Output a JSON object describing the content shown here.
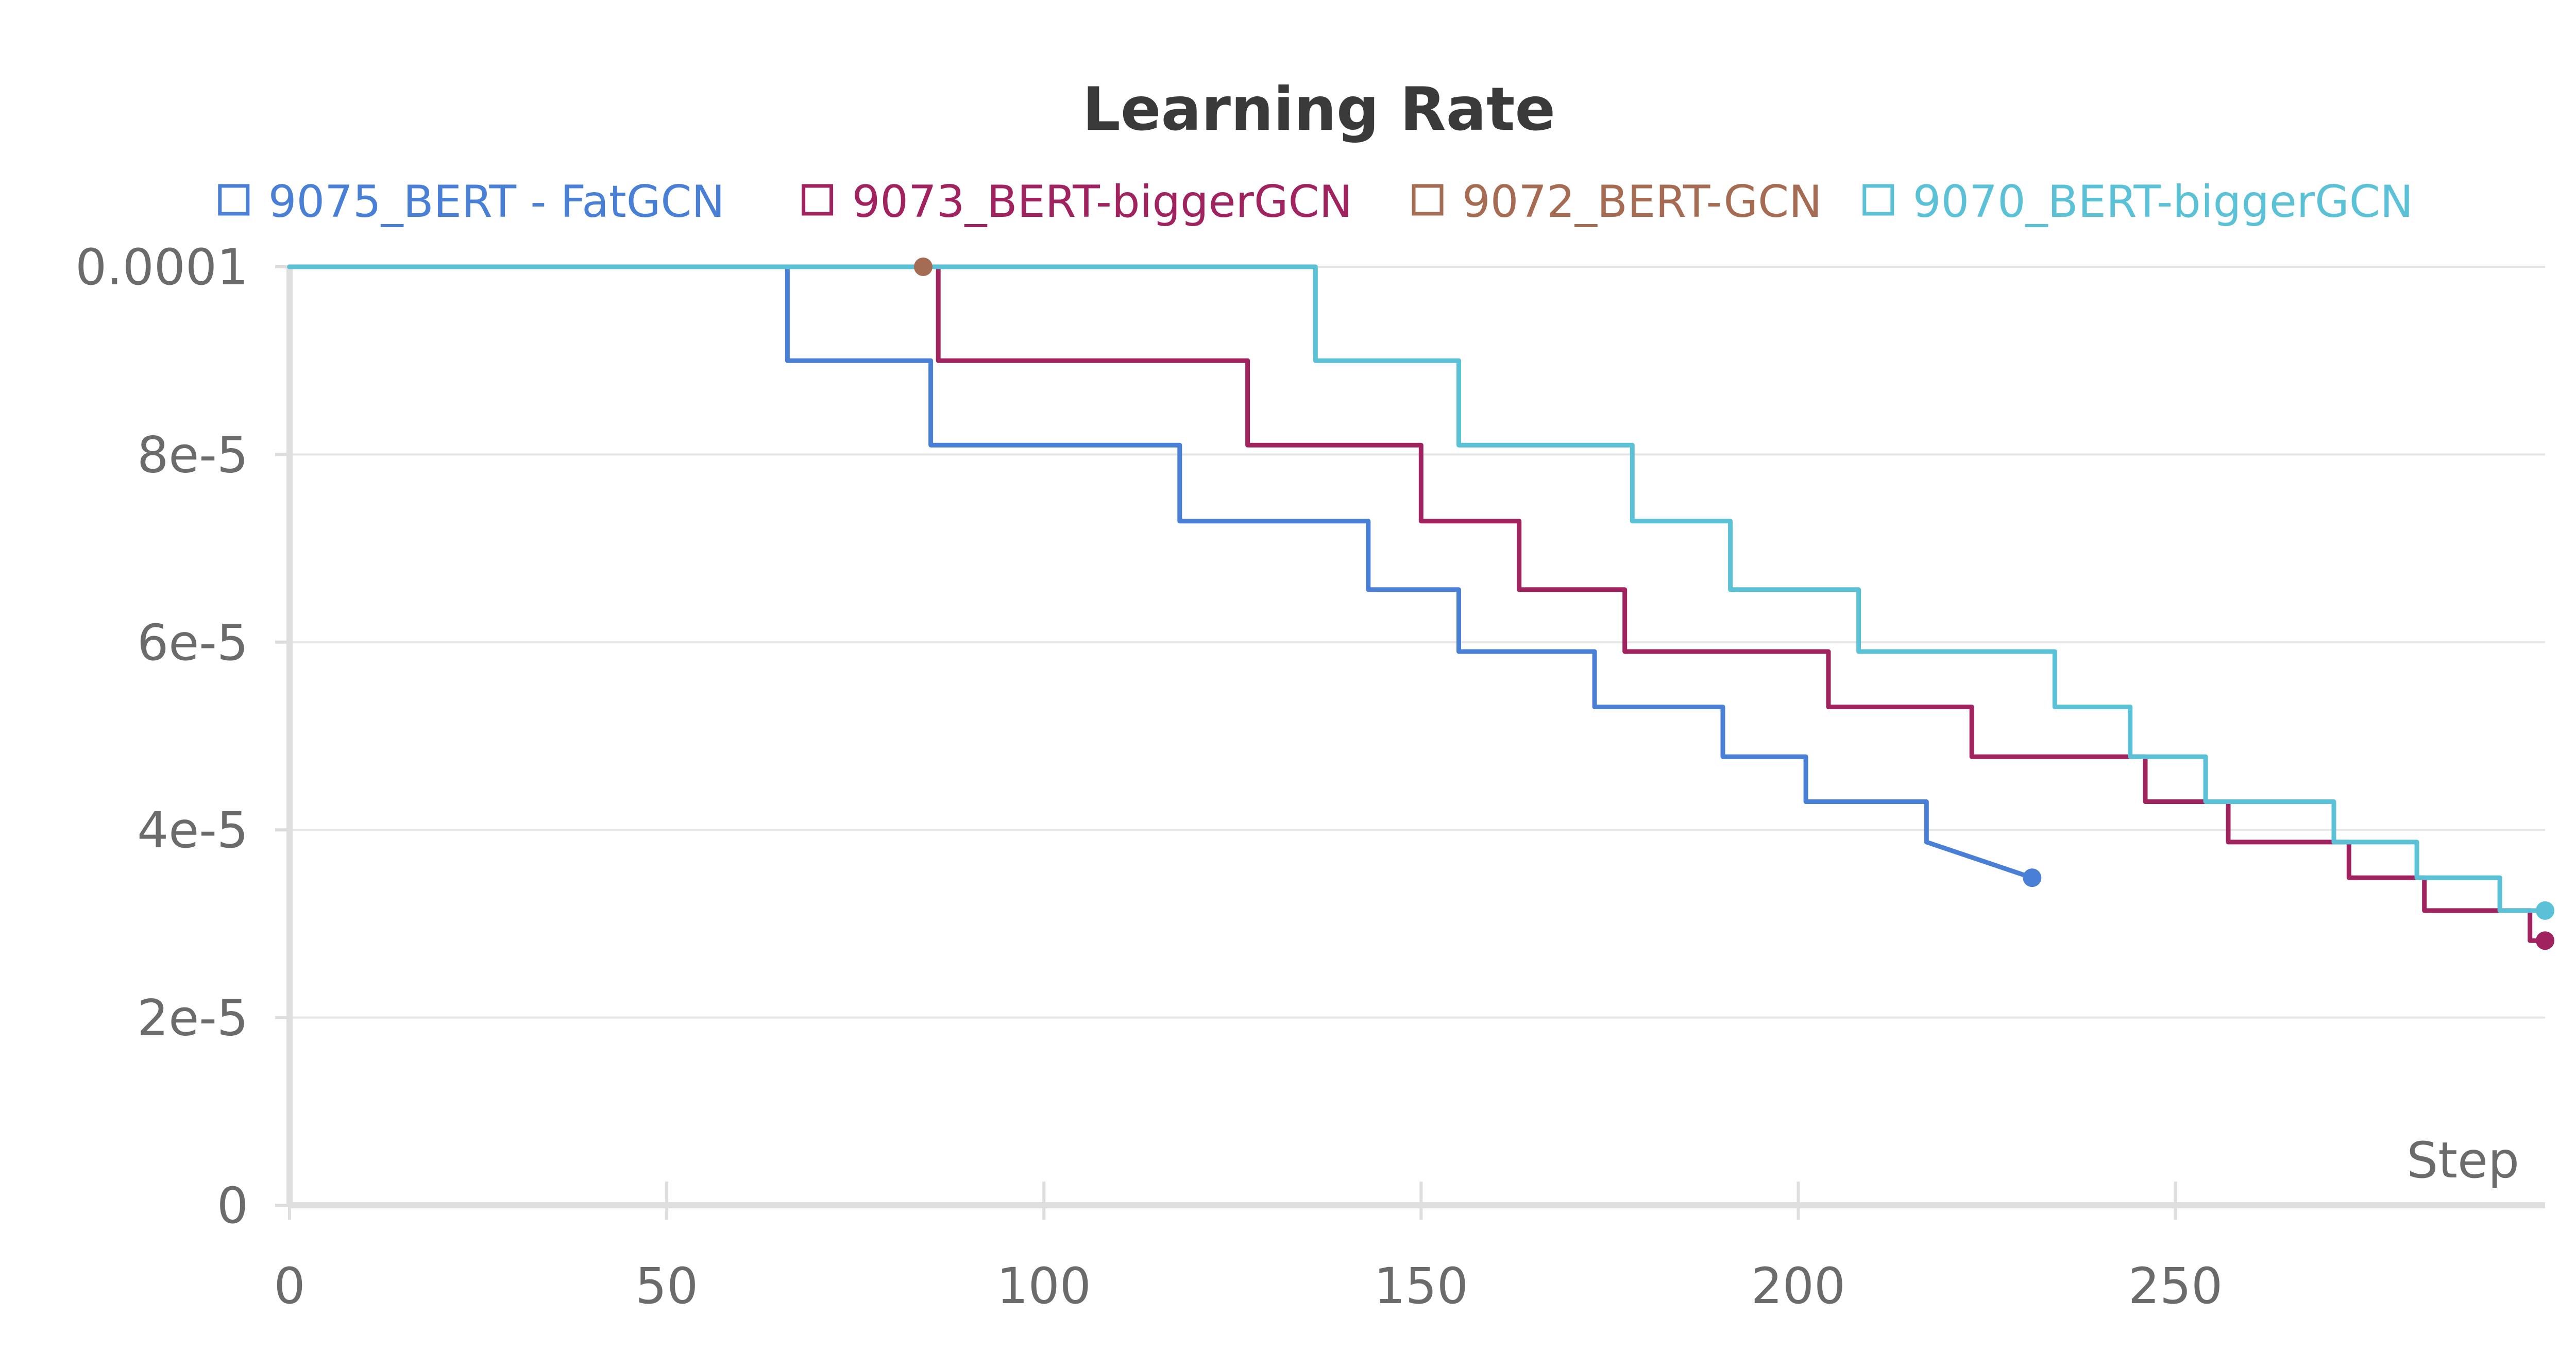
{
  "chart_data": {
    "type": "line",
    "title": "Learning Rate",
    "xlabel": "Step",
    "ylabel": "",
    "xlim": [
      0,
      299
    ],
    "ylim": [
      0,
      0.0001
    ],
    "x_ticks": [
      {
        "value": 0,
        "label": "0"
      },
      {
        "value": 50,
        "label": "50"
      },
      {
        "value": 100,
        "label": "100"
      },
      {
        "value": 150,
        "label": "150"
      },
      {
        "value": 200,
        "label": "200"
      },
      {
        "value": 250,
        "label": "250"
      }
    ],
    "y_ticks": [
      {
        "value": 0,
        "label": "0"
      },
      {
        "value": 2e-05,
        "label": "2e-5"
      },
      {
        "value": 4e-05,
        "label": "4e-5"
      },
      {
        "value": 6e-05,
        "label": "6e-5"
      },
      {
        "value": 8e-05,
        "label": "8e-5"
      },
      {
        "value": 0.0001,
        "label": "0.0001"
      }
    ],
    "grid": true,
    "legend_position": "top",
    "series": [
      {
        "name": "9075_BERT - FatGCN",
        "color": "#4a7fd6",
        "x": [
          0,
          66,
          66,
          85,
          85,
          118,
          118,
          143,
          143,
          155,
          155,
          173,
          173,
          190,
          190,
          201,
          201,
          217,
          217,
          231
        ],
        "y": [
          0.0001,
          0.0001,
          9e-05,
          9e-05,
          8.1e-05,
          8.1e-05,
          7.29e-05,
          7.29e-05,
          6.56e-05,
          6.56e-05,
          5.9e-05,
          5.9e-05,
          5.31e-05,
          5.31e-05,
          4.78e-05,
          4.78e-05,
          4.3e-05,
          4.3e-05,
          3.87e-05,
          3.49e-05
        ]
      },
      {
        "name": "9073_BERT-biggerGCN",
        "color": "#a0225e",
        "x": [
          0,
          86,
          86,
          127,
          127,
          150,
          150,
          163,
          163,
          177,
          177,
          204,
          204,
          223,
          223,
          246,
          246,
          257,
          257,
          273,
          273,
          283,
          283,
          297,
          297,
          299
        ],
        "y": [
          0.0001,
          0.0001,
          9e-05,
          9e-05,
          8.1e-05,
          8.1e-05,
          7.29e-05,
          7.29e-05,
          6.56e-05,
          6.56e-05,
          5.9e-05,
          5.9e-05,
          5.31e-05,
          5.31e-05,
          4.78e-05,
          4.78e-05,
          4.3e-05,
          4.3e-05,
          3.87e-05,
          3.87e-05,
          3.49e-05,
          3.49e-05,
          3.14e-05,
          3.14e-05,
          2.82e-05,
          2.82e-05
        ]
      },
      {
        "name": "9072_BERT-GCN",
        "color": "#a66c53",
        "x": [
          84
        ],
        "y": [
          0.0001
        ]
      },
      {
        "name": "9070_BERT-biggerGCN",
        "color": "#5ac1d7",
        "x": [
          0,
          136,
          136,
          155,
          155,
          178,
          178,
          191,
          191,
          208,
          208,
          234,
          234,
          244,
          244,
          254,
          254,
          271,
          271,
          282,
          282,
          293,
          293,
          299
        ],
        "y": [
          0.0001,
          0.0001,
          9e-05,
          9e-05,
          8.1e-05,
          8.1e-05,
          7.29e-05,
          7.29e-05,
          6.56e-05,
          6.56e-05,
          5.9e-05,
          5.9e-05,
          5.31e-05,
          5.31e-05,
          4.78e-05,
          4.78e-05,
          4.3e-05,
          4.3e-05,
          3.87e-05,
          3.87e-05,
          3.49e-05,
          3.49e-05,
          3.14e-05,
          3.14e-05
        ]
      }
    ]
  }
}
